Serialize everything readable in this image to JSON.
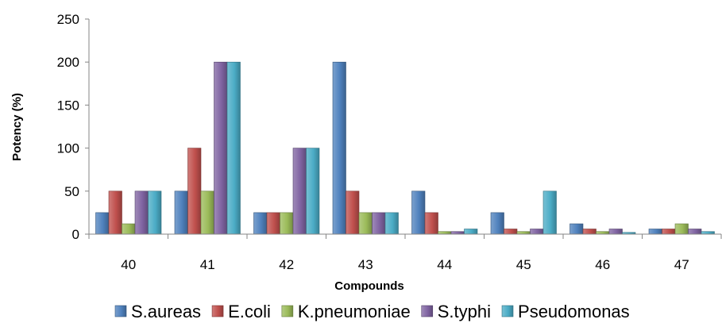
{
  "chart_data": {
    "type": "bar",
    "xlabel": "Compounds",
    "ylabel": "Potency (%)",
    "ylim": [
      0,
      250
    ],
    "yticks": [
      0,
      50,
      100,
      150,
      200,
      250
    ],
    "grid": false,
    "legend_position": "bottom",
    "categories": [
      "40",
      "41",
      "42",
      "43",
      "44",
      "45",
      "46",
      "47"
    ],
    "series": [
      {
        "name": "S.aureas",
        "color": "#4F81BD",
        "values": [
          25,
          50,
          25,
          200,
          50,
          25,
          12,
          6
        ]
      },
      {
        "name": "E.coli",
        "color": "#C0504D",
        "values": [
          50,
          100,
          25,
          50,
          25,
          6,
          6,
          6
        ]
      },
      {
        "name": "K.pneumoniae",
        "color": "#9BBB59",
        "values": [
          12,
          50,
          25,
          25,
          3,
          3,
          3,
          12
        ]
      },
      {
        "name": "S.typhi",
        "color": "#8064A2",
        "values": [
          50,
          200,
          100,
          25,
          3,
          6,
          6,
          6
        ]
      },
      {
        "name": "Pseudomonas",
        "color": "#4BACC6",
        "values": [
          50,
          200,
          100,
          25,
          6,
          50,
          2,
          3
        ]
      }
    ]
  }
}
